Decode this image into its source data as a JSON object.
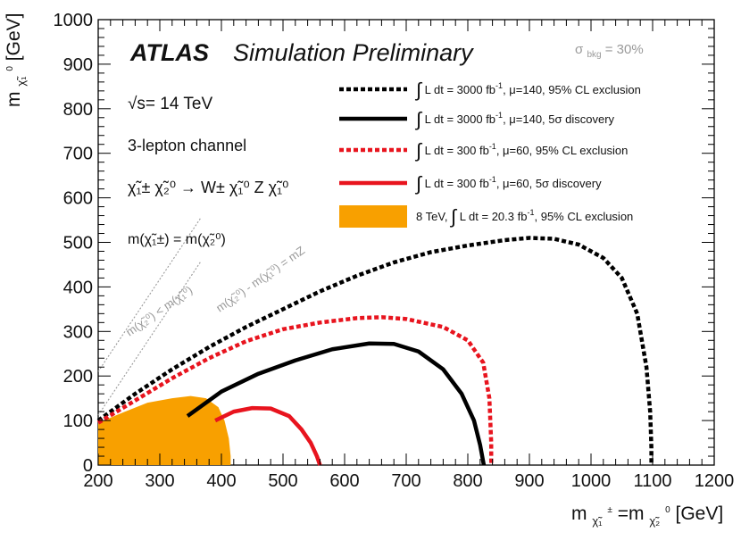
{
  "chart_data": {
    "type": "line",
    "title": "ATLAS Simulation Preliminary",
    "title_bold": "ATLAS",
    "title_rest": "Simulation Preliminary",
    "xlabel": "m(χ̃1±)=m(χ̃2⁰) [GeV]",
    "xlabel_main": "m",
    "xlabel_sub1": "χ̃₁",
    "xlabel_sup1": "±",
    "xlabel_mid": "=m",
    "xlabel_sub2": "χ̃₂",
    "xlabel_sup2": "0",
    "xlabel_unit": "[GeV]",
    "ylabel": "m(χ̃1⁰) [GeV]",
    "ylabel_main": "m",
    "ylabel_sub": "χ̃₁",
    "ylabel_sup": "0",
    "ylabel_unit": "[GeV]",
    "xlim": [
      200,
      1200
    ],
    "ylim": [
      0,
      1000
    ],
    "xticks": [
      "200",
      "300",
      "400",
      "500",
      "600",
      "700",
      "800",
      "900",
      "1000",
      "1100",
      "1200"
    ],
    "yticks": [
      "0",
      "100",
      "200",
      "300",
      "400",
      "500",
      "600",
      "700",
      "800",
      "900",
      "1000"
    ],
    "annotations": {
      "energy": "√s= 14 TeV",
      "channel": "3-lepton channel",
      "process": "χ̃₁± χ̃₂⁰ → W± χ̃₁⁰ Z χ̃₁⁰",
      "mass_relation": "m(χ̃₁±) = m(χ̃₂⁰)",
      "sigma_main": "σ",
      "sigma_sub": "bkg",
      "sigma_rest": " = 30%",
      "kin_limit_1": "m(χ̃₂⁰) < m(χ̃₁⁰)",
      "kin_limit_2": "m(χ̃₂⁰) - m(χ̃₁⁰) = mZ"
    },
    "series": [
      {
        "name": "∫L dt = 3000 fb⁻¹, μ=140, 95% CL exclusion",
        "color": "#000000",
        "dash": "dotted",
        "x": [
          200,
          260,
          320,
          380,
          440,
          500,
          560,
          620,
          680,
          740,
          800,
          860,
          900,
          940,
          980,
          1020,
          1050,
          1075,
          1090,
          1096,
          1098,
          1098
        ],
        "y": [
          100,
          160,
          215,
          265,
          310,
          350,
          390,
          425,
          455,
          478,
          493,
          505,
          510,
          508,
          495,
          465,
          420,
          340,
          220,
          120,
          40,
          0
        ]
      },
      {
        "name": "∫L dt = 3000 fb⁻¹, μ=140, 5σ discovery",
        "color": "#000000",
        "dash": "solid",
        "x": [
          345,
          400,
          460,
          520,
          580,
          640,
          680,
          720,
          760,
          790,
          810,
          820,
          826
        ],
        "y": [
          110,
          165,
          205,
          235,
          260,
          273,
          272,
          255,
          215,
          160,
          100,
          45,
          0
        ]
      },
      {
        "name": "∫L dt = 300 fb⁻¹, μ=60, 95% CL exclusion",
        "color": "#e8141e",
        "dash": "dotted",
        "x": [
          200,
          260,
          320,
          380,
          440,
          500,
          560,
          620,
          660,
          700,
          760,
          800,
          825,
          835,
          838,
          838
        ],
        "y": [
          95,
          145,
          195,
          240,
          278,
          305,
          320,
          330,
          332,
          328,
          310,
          280,
          230,
          150,
          50,
          0
        ]
      },
      {
        "name": "∫L dt = 300 fb⁻¹, μ=60, 5σ discovery",
        "color": "#e8141e",
        "dash": "solid",
        "x": [
          390,
          420,
          450,
          480,
          510,
          530,
          545,
          555,
          560
        ],
        "y": [
          100,
          120,
          128,
          127,
          110,
          80,
          50,
          20,
          0
        ]
      },
      {
        "name": "8 TeV, ∫L dt = 20.3 fb⁻¹, 95% CL exclusion",
        "color": "#f8a000",
        "dash": "fill",
        "x": [
          200,
          240,
          280,
          320,
          350,
          375,
          395,
          405,
          412,
          415,
          415,
          200
        ],
        "y": [
          95,
          118,
          140,
          150,
          155,
          150,
          130,
          100,
          60,
          20,
          0,
          0
        ]
      }
    ],
    "legend": {
      "placement": "top-right",
      "entries": [
        {
          "pre": "",
          "text": "L dt = 3000 fb",
          "sup": "-1",
          "post": ", μ=140, 95% CL exclusion"
        },
        {
          "pre": "",
          "text": "L dt = 3000 fb",
          "sup": "-1",
          "post": ", μ=140, 5σ discovery"
        },
        {
          "pre": "",
          "text": "L dt = 300 fb",
          "sup": "-1",
          "post": ", μ=60, 95% CL exclusion"
        },
        {
          "pre": "",
          "text": "L dt = 300 fb",
          "sup": "-1",
          "post": ", μ=60, 5σ discovery"
        },
        {
          "pre": "8 TeV, ",
          "text": "L dt = 20.3 fb",
          "sup": "-1",
          "post": ", 95% CL exclusion"
        }
      ]
    }
  }
}
